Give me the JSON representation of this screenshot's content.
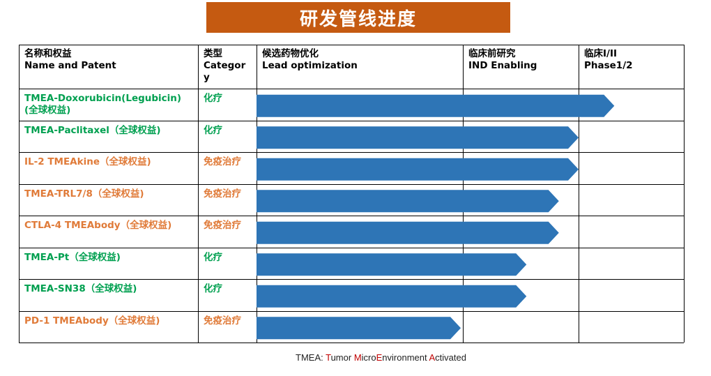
{
  "title": "研发管线进度",
  "columns": [
    {
      "zh": "名称和权益",
      "en": "Name and Patent"
    },
    {
      "zh": "类型",
      "en": "Categor\ny"
    },
    {
      "zh": "候选药物优化",
      "en": "Lead optimization"
    },
    {
      "zh": "临床前研究",
      "en": "IND Enabling"
    },
    {
      "zh": "临床I/II",
      "en": "Phase1/2"
    }
  ],
  "colors": {
    "banner": "#c55a11",
    "chemo": "#00a050",
    "immuno": "#e07b39",
    "bar": "#2e75b6",
    "grid": "#000000",
    "footnote_red": "#c00000"
  },
  "chart_data": {
    "type": "bar",
    "orientation": "horizontal",
    "stages": [
      "候选药物优化",
      "临床前研究",
      "临床I/II"
    ],
    "categories": [
      "TMEA-Doxorubicin(Legubicin)(全球权益)",
      "TMEA-Paclitaxel（全球权益)",
      "IL-2 TMEAkine（全球权益)",
      "TMEA-TRL7/8（全球权益)",
      "CTLA-4 TMEAbody（全球权益)",
      "TMEA-Pt（全球权益)",
      "TMEA-SN38（全球权益)",
      "PD-1 TMEAbody（全球权益)"
    ],
    "values": [
      2.34,
      2.0,
      2.0,
      1.83,
      1.83,
      1.55,
      1.55,
      0.99
    ],
    "xlim": [
      0,
      3
    ]
  },
  "rows": [
    {
      "name": "TMEA-Doxorubicin(Legubicin)\n(全球权益)",
      "type": "化疗",
      "kind": "chemo"
    },
    {
      "name": "TMEA-Paclitaxel（全球权益)",
      "type": "化疗",
      "kind": "chemo"
    },
    {
      "name": "IL-2 TMEAkine（全球权益)",
      "type": "免疫治疗",
      "kind": "immuno"
    },
    {
      "name": "TMEA-TRL7/8（全球权益)",
      "type": "免疫治疗",
      "kind": "immuno"
    },
    {
      "name": "CTLA-4 TMEAbody（全球权益)",
      "type": "免疫治疗",
      "kind": "immuno"
    },
    {
      "name": "TMEA-Pt（全球权益)",
      "type": "化疗",
      "kind": "chemo"
    },
    {
      "name": "TMEA-SN38（全球权益)",
      "type": "化疗",
      "kind": "chemo"
    },
    {
      "name": "PD-1 TMEAbody（全球权益)",
      "type": "免疫治疗",
      "kind": "immuno"
    }
  ],
  "footnote": {
    "prefix": "TMEA: ",
    "parts": [
      {
        "first": "T",
        "rest": "umor "
      },
      {
        "first": "M",
        "rest": "icro"
      },
      {
        "first": "E",
        "rest": "nvironment "
      },
      {
        "first": "A",
        "rest": "ctivated"
      }
    ]
  }
}
